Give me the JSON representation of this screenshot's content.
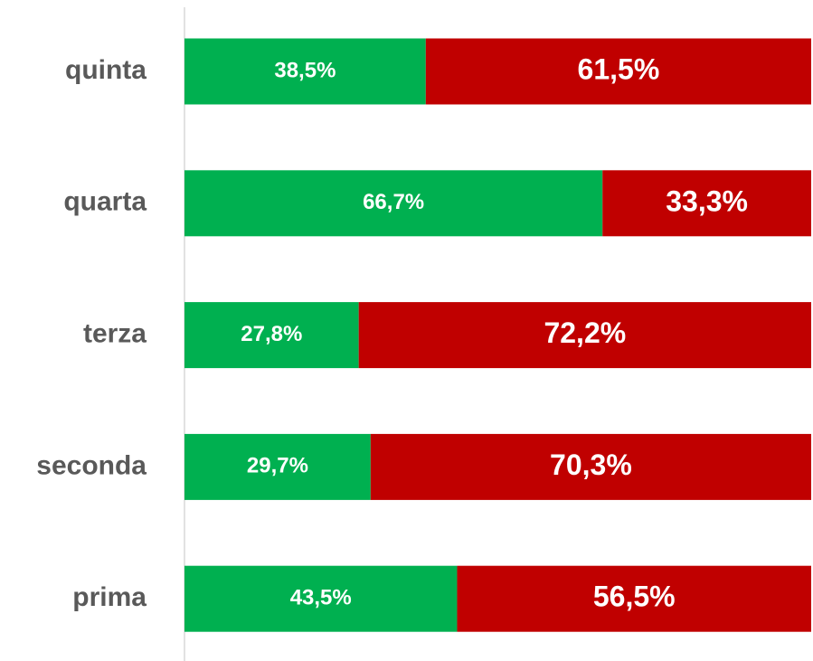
{
  "chart_data": {
    "type": "stacked-bar",
    "orientation": "horizontal",
    "categories": [
      "quinta",
      "quarta",
      "terza",
      "seconda",
      "prima"
    ],
    "series": [
      {
        "color": "#00b050",
        "values": [
          38.5,
          66.7,
          27.8,
          29.7,
          43.5
        ],
        "value_labels": [
          "38,5%",
          "66,7%",
          "27,8%",
          "29,7%",
          "43,5%"
        ]
      },
      {
        "color": "#c00000",
        "values": [
          61.5,
          33.3,
          72.2,
          70.3,
          56.5
        ],
        "value_labels": [
          "61,5%",
          "33,3%",
          "72,2%",
          "70,3%",
          "56,5%"
        ]
      }
    ],
    "xlim": [
      0,
      100
    ]
  }
}
